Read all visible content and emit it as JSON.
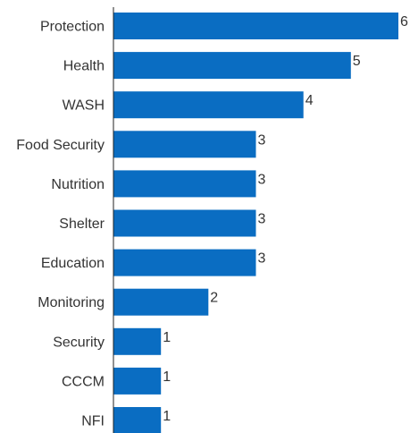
{
  "colors": {
    "bar": "#0a6dc2",
    "axis": "#222222",
    "text": "#333333"
  },
  "chart_data": {
    "type": "bar",
    "orientation": "horizontal",
    "categories": [
      "Protection",
      "Health",
      "WASH",
      "Food Security",
      "Nutrition",
      "Shelter",
      "Education",
      "Monitoring",
      "Security",
      "CCCM",
      "NFI"
    ],
    "values": [
      6,
      5,
      4,
      3,
      3,
      3,
      3,
      2,
      1,
      1,
      1
    ],
    "title": "",
    "xlabel": "",
    "ylabel": "",
    "xlim": [
      0,
      6
    ],
    "grid": false,
    "legend": "none",
    "data_labels": true
  }
}
